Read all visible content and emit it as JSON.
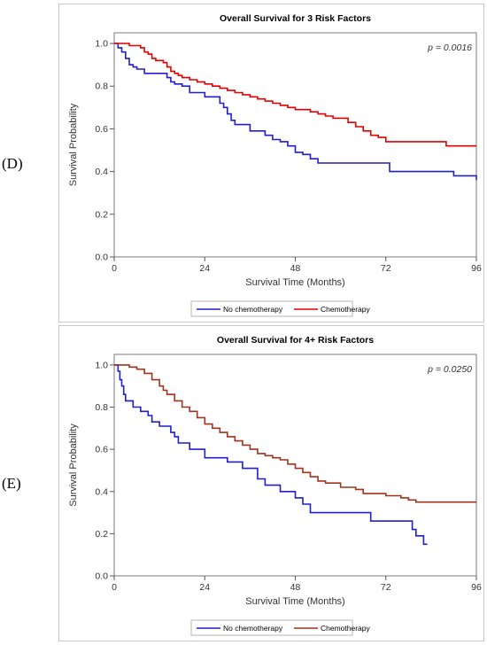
{
  "panel_labels": {
    "d": "(D)",
    "e": "(E)"
  },
  "chart_data": [
    {
      "type": "line",
      "title": "Overall Survival for 3 Risk Factors",
      "xlabel": "Survival Time (Months)",
      "ylabel": "Survival Probability",
      "xlim": [
        0,
        96
      ],
      "ylim": [
        0,
        1.05
      ],
      "xticks": [
        "0",
        "24",
        "48",
        "72",
        "96"
      ],
      "yticks": [
        "0.0",
        "0.2",
        "0.4",
        "0.6",
        "0.8",
        "1.0"
      ],
      "p_value": "p = 0.0016",
      "grid": false,
      "legend": "bottom-center",
      "series": [
        {
          "name": "No chemotherapy",
          "color": "#1f1fcf",
          "x": [
            0,
            1,
            2,
            3,
            4,
            5,
            6,
            8,
            10,
            14,
            15,
            16,
            18,
            20,
            24,
            26,
            28,
            29,
            30,
            31,
            32,
            36,
            40,
            42,
            44,
            46,
            48,
            50,
            52,
            54,
            72,
            73,
            90,
            96
          ],
          "y": [
            1.0,
            0.98,
            0.96,
            0.93,
            0.9,
            0.89,
            0.88,
            0.86,
            0.86,
            0.84,
            0.82,
            0.81,
            0.8,
            0.77,
            0.75,
            0.75,
            0.72,
            0.7,
            0.67,
            0.64,
            0.62,
            0.59,
            0.57,
            0.55,
            0.54,
            0.52,
            0.49,
            0.48,
            0.46,
            0.44,
            0.44,
            0.4,
            0.38,
            0.36
          ]
        },
        {
          "name": "Chemotherapy",
          "color": "#e60000",
          "x": [
            0,
            4,
            7,
            8,
            9,
            10,
            11,
            13,
            14,
            15,
            16,
            17,
            18,
            20,
            22,
            24,
            26,
            28,
            30,
            32,
            34,
            36,
            38,
            40,
            42,
            44,
            46,
            48,
            52,
            54,
            56,
            58,
            62,
            64,
            66,
            68,
            70,
            72,
            88,
            96
          ],
          "y": [
            1.0,
            0.99,
            0.98,
            0.96,
            0.95,
            0.93,
            0.92,
            0.91,
            0.89,
            0.87,
            0.86,
            0.85,
            0.84,
            0.83,
            0.82,
            0.81,
            0.8,
            0.79,
            0.78,
            0.77,
            0.76,
            0.75,
            0.74,
            0.73,
            0.72,
            0.71,
            0.7,
            0.69,
            0.68,
            0.67,
            0.66,
            0.65,
            0.63,
            0.61,
            0.59,
            0.57,
            0.56,
            0.54,
            0.52,
            0.52
          ]
        }
      ]
    },
    {
      "type": "line",
      "title": "Overall Survival for 4+ Risk Factors",
      "xlabel": "Survival Time (Months)",
      "ylabel": "Survival Probability",
      "xlim": [
        0,
        96
      ],
      "ylim": [
        0,
        1.05
      ],
      "xticks": [
        "0",
        "24",
        "48",
        "72",
        "96"
      ],
      "yticks": [
        "0.0",
        "0.2",
        "0.4",
        "0.6",
        "0.8",
        "1.0"
      ],
      "p_value": "p = 0.0250",
      "grid": false,
      "legend": "bottom-center",
      "series": [
        {
          "name": "No chemotherapy",
          "color": "#1f1fcf",
          "x": [
            0,
            1,
            1.5,
            2,
            2.5,
            3,
            5,
            7,
            9,
            10,
            12,
            15,
            16,
            17,
            20,
            22,
            24,
            26,
            30,
            34,
            38,
            40,
            44,
            48,
            50,
            52,
            54,
            66,
            68,
            79,
            80,
            82,
            83
          ],
          "y": [
            1.0,
            0.97,
            0.93,
            0.9,
            0.86,
            0.83,
            0.8,
            0.78,
            0.76,
            0.73,
            0.71,
            0.68,
            0.66,
            0.63,
            0.6,
            0.6,
            0.56,
            0.56,
            0.54,
            0.51,
            0.46,
            0.43,
            0.4,
            0.37,
            0.34,
            0.3,
            0.3,
            0.3,
            0.26,
            0.22,
            0.19,
            0.15,
            0.15
          ],
          "end_x": 83
        },
        {
          "name": "Chemotherapy",
          "color": "#a0341c",
          "x": [
            0,
            4,
            6,
            8,
            10,
            12,
            13,
            14,
            16,
            18,
            20,
            22,
            24,
            26,
            28,
            30,
            32,
            34,
            36,
            38,
            40,
            42,
            44,
            46,
            48,
            50,
            52,
            54,
            56,
            60,
            64,
            66,
            72,
            76,
            78,
            80,
            96
          ],
          "y": [
            1.0,
            0.99,
            0.98,
            0.96,
            0.93,
            0.9,
            0.88,
            0.86,
            0.83,
            0.8,
            0.78,
            0.75,
            0.72,
            0.7,
            0.68,
            0.66,
            0.64,
            0.62,
            0.6,
            0.58,
            0.57,
            0.56,
            0.55,
            0.53,
            0.51,
            0.49,
            0.47,
            0.45,
            0.44,
            0.42,
            0.41,
            0.39,
            0.38,
            0.37,
            0.36,
            0.35,
            0.35
          ]
        }
      ]
    }
  ]
}
